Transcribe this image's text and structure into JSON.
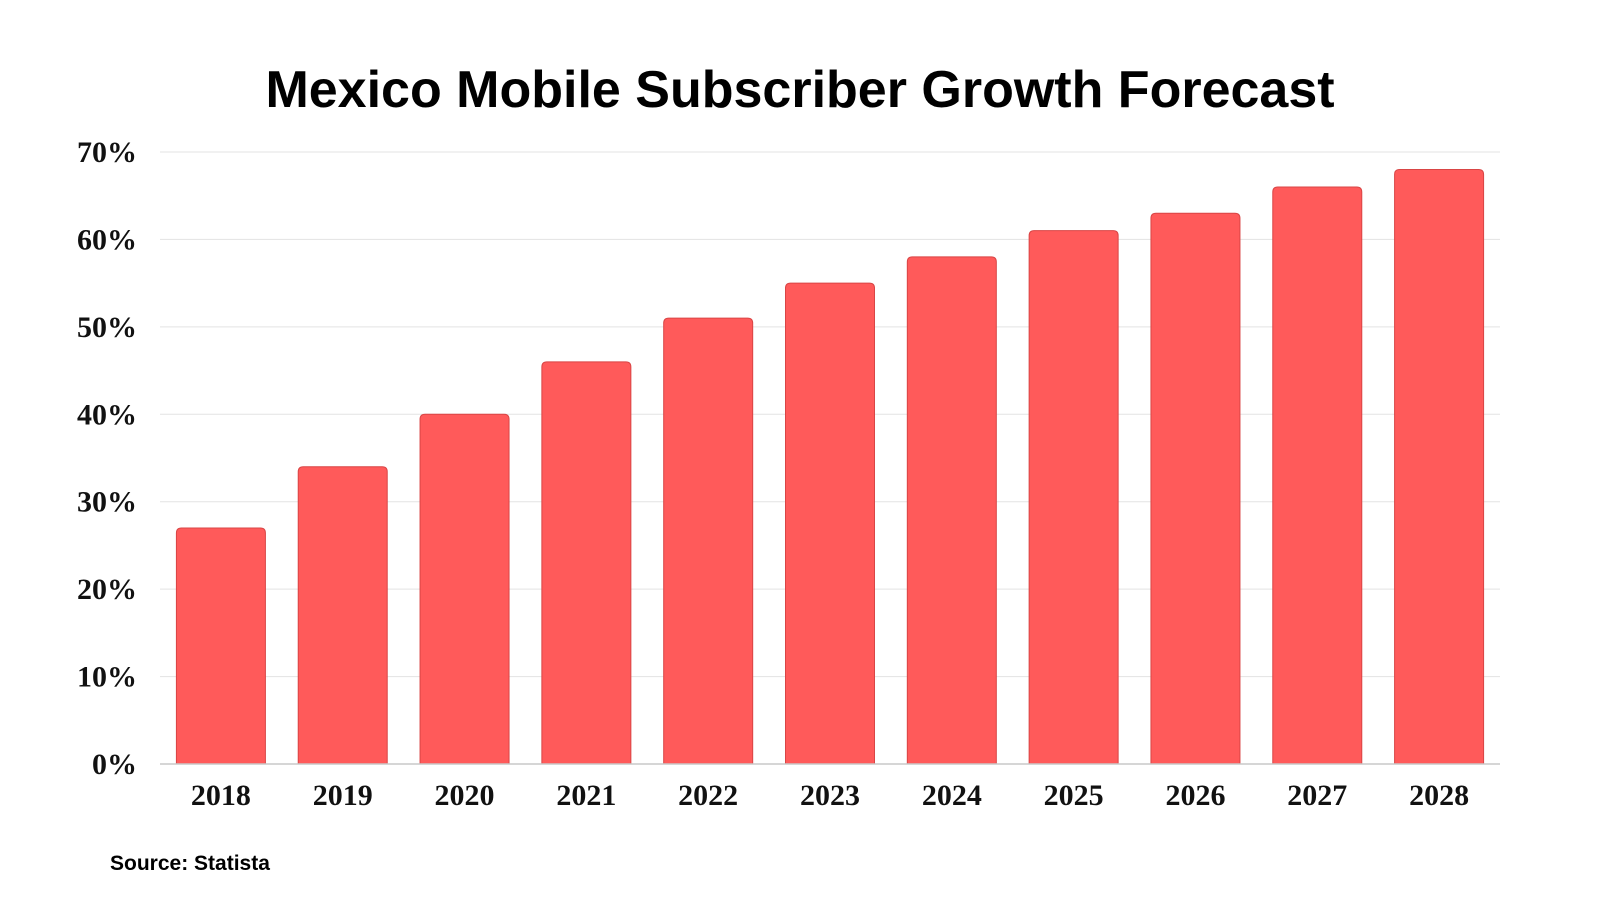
{
  "chart_data": {
    "type": "bar",
    "title": "Mexico Mobile Subscriber Growth Forecast",
    "source": "Source: Statista",
    "categories": [
      "2018",
      "2019",
      "2020",
      "2021",
      "2022",
      "2023",
      "2024",
      "2025",
      "2026",
      "2027",
      "2028"
    ],
    "values": [
      27,
      34,
      40,
      46,
      51,
      55,
      58,
      61,
      63,
      66,
      68
    ],
    "ylim": [
      0,
      70
    ],
    "yticks": [
      0,
      10,
      20,
      30,
      40,
      50,
      60,
      70
    ],
    "ytick_labels": [
      "0%",
      "10%",
      "20%",
      "30%",
      "40%",
      "50%",
      "60%",
      "70%"
    ],
    "xlabel": "",
    "ylabel": "",
    "grid": true,
    "legend": false,
    "bar_color": "#ff5a5a"
  }
}
